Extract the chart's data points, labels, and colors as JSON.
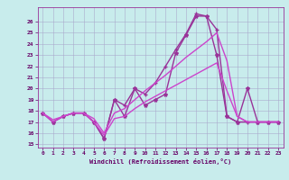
{
  "title": "",
  "xlabel": "Windchill (Refroidissement éolien,°C)",
  "bg_color": "#c8ecec",
  "grid_color": "#aaaacc",
  "xlim": [
    -0.5,
    23.5
  ],
  "ylim": [
    14.7,
    27.3
  ],
  "yticks": [
    15,
    16,
    17,
    18,
    19,
    20,
    21,
    22,
    23,
    24,
    25,
    26
  ],
  "xticks": [
    0,
    1,
    2,
    3,
    4,
    5,
    6,
    7,
    8,
    9,
    10,
    11,
    12,
    13,
    14,
    15,
    16,
    17,
    18,
    19,
    20,
    21,
    22,
    23
  ],
  "lines": [
    {
      "x": [
        0,
        1,
        2,
        3,
        4,
        5,
        6,
        7,
        8,
        9,
        10,
        11,
        12,
        13,
        14,
        15,
        16,
        17,
        18,
        19,
        20,
        21,
        22,
        23
      ],
      "y": [
        17.8,
        17.0,
        17.5,
        17.8,
        17.8,
        17.0,
        15.5,
        19.0,
        17.5,
        20.0,
        18.5,
        19.0,
        19.5,
        23.2,
        24.8,
        26.5,
        26.5,
        23.0,
        17.5,
        17.0,
        20.0,
        17.0,
        17.0,
        17.0
      ],
      "marker": "*",
      "markersize": 3,
      "color": "#993399",
      "linewidth": 1.0
    },
    {
      "x": [
        0,
        1,
        2,
        3,
        4,
        5,
        6,
        7,
        8,
        9,
        10,
        11,
        12,
        13,
        14,
        15,
        16,
        17,
        18,
        19,
        20,
        21,
        22,
        23
      ],
      "y": [
        17.8,
        17.0,
        17.5,
        17.8,
        17.8,
        17.0,
        15.5,
        19.0,
        18.5,
        20.0,
        19.5,
        20.5,
        22.0,
        23.5,
        24.9,
        26.7,
        26.5,
        25.3,
        17.5,
        17.0,
        17.0,
        17.0,
        17.0,
        17.0
      ],
      "marker": "+",
      "markersize": 3,
      "color": "#993399",
      "linewidth": 1.0
    },
    {
      "x": [
        0,
        1,
        2,
        3,
        4,
        5,
        6,
        7,
        8,
        9,
        10,
        11,
        12,
        13,
        14,
        15,
        16,
        17,
        18,
        19,
        20,
        21,
        22,
        23
      ],
      "y": [
        17.8,
        17.2,
        17.5,
        17.8,
        17.8,
        17.3,
        16.0,
        17.8,
        18.2,
        19.0,
        19.8,
        20.5,
        21.2,
        22.0,
        22.8,
        23.5,
        24.2,
        25.0,
        22.5,
        17.5,
        17.0,
        17.0,
        17.0,
        17.0
      ],
      "marker": null,
      "markersize": 0,
      "color": "#cc44cc",
      "linewidth": 1.0
    },
    {
      "x": [
        0,
        1,
        2,
        3,
        4,
        5,
        6,
        7,
        8,
        9,
        10,
        11,
        12,
        13,
        14,
        15,
        16,
        17,
        18,
        19,
        20,
        21,
        22,
        23
      ],
      "y": [
        17.8,
        17.0,
        17.5,
        17.8,
        17.8,
        17.0,
        15.8,
        17.3,
        17.5,
        18.2,
        18.8,
        19.3,
        19.8,
        20.3,
        20.8,
        21.3,
        21.8,
        22.3,
        19.8,
        17.5,
        17.0,
        17.0,
        17.0,
        17.0
      ],
      "marker": null,
      "markersize": 0,
      "color": "#cc44cc",
      "linewidth": 1.0
    }
  ]
}
